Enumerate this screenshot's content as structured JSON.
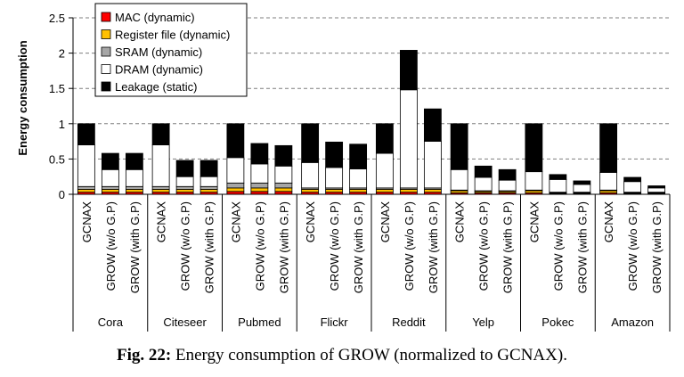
{
  "caption": {
    "label": "Fig. 22:",
    "text": "Energy consumption of GROW (normalized to GCNAX)."
  },
  "chart_data": {
    "type": "bar",
    "stacked": true,
    "ylabel": "Energy consumption",
    "xlabel": "",
    "ylim": [
      0,
      2.5
    ],
    "yticks": [
      0,
      0.5,
      1,
      1.5,
      2,
      2.5
    ],
    "grid": "horizontal-dashed",
    "legend_position": "top-left",
    "groups": [
      "Cora",
      "Citeseer",
      "Pubmed",
      "Flickr",
      "Reddit",
      "Yelp",
      "Pokec",
      "Amazon"
    ],
    "bar_labels": [
      "GCNAX",
      "GROW (w/o G.P)",
      "GROW (with G.P)"
    ],
    "series": [
      {
        "name": "MAC (dynamic)",
        "color": "#ff0000",
        "values": [
          [
            0.03,
            0.03,
            0.03
          ],
          [
            0.03,
            0.03,
            0.03
          ],
          [
            0.04,
            0.04,
            0.04
          ],
          [
            0.03,
            0.03,
            0.03
          ],
          [
            0.03,
            0.03,
            0.03
          ],
          [
            0.02,
            0.02,
            0.02
          ],
          [
            0.02,
            0.01,
            0.01
          ],
          [
            0.02,
            0.01,
            0.01
          ]
        ]
      },
      {
        "name": "Register file (dynamic)",
        "color": "#ffc000",
        "values": [
          [
            0.04,
            0.04,
            0.04
          ],
          [
            0.04,
            0.04,
            0.04
          ],
          [
            0.05,
            0.05,
            0.05
          ],
          [
            0.04,
            0.04,
            0.04
          ],
          [
            0.04,
            0.04,
            0.04
          ],
          [
            0.03,
            0.02,
            0.02
          ],
          [
            0.03,
            0.01,
            0.01
          ],
          [
            0.03,
            0.01,
            0.01
          ]
        ]
      },
      {
        "name": "SRAM (dynamic)",
        "color": "#a6a6a6",
        "values": [
          [
            0.04,
            0.04,
            0.04
          ],
          [
            0.04,
            0.04,
            0.04
          ],
          [
            0.07,
            0.07,
            0.07
          ],
          [
            0.02,
            0.02,
            0.02
          ],
          [
            0.02,
            0.02,
            0.02
          ],
          [
            0.01,
            0.01,
            0.01
          ],
          [
            0.01,
            0.01,
            0.01
          ],
          [
            0.01,
            0.01,
            0.01
          ]
        ]
      },
      {
        "name": "DRAM (dynamic)",
        "color": "#ffffff",
        "values": [
          [
            0.59,
            0.24,
            0.24
          ],
          [
            0.59,
            0.14,
            0.14
          ],
          [
            0.36,
            0.27,
            0.24
          ],
          [
            0.36,
            0.29,
            0.27
          ],
          [
            0.49,
            1.39,
            0.66
          ],
          [
            0.29,
            0.19,
            0.15
          ],
          [
            0.26,
            0.18,
            0.11
          ],
          [
            0.25,
            0.15,
            0.06
          ]
        ]
      },
      {
        "name": "Leakage (static)",
        "color": "#000000",
        "values": [
          [
            0.3,
            0.23,
            0.23
          ],
          [
            0.3,
            0.23,
            0.23
          ],
          [
            0.48,
            0.29,
            0.29
          ],
          [
            0.55,
            0.36,
            0.35
          ],
          [
            0.42,
            0.56,
            0.46
          ],
          [
            0.65,
            0.16,
            0.15
          ],
          [
            0.68,
            0.07,
            0.05
          ],
          [
            0.69,
            0.06,
            0.03
          ]
        ]
      }
    ]
  }
}
